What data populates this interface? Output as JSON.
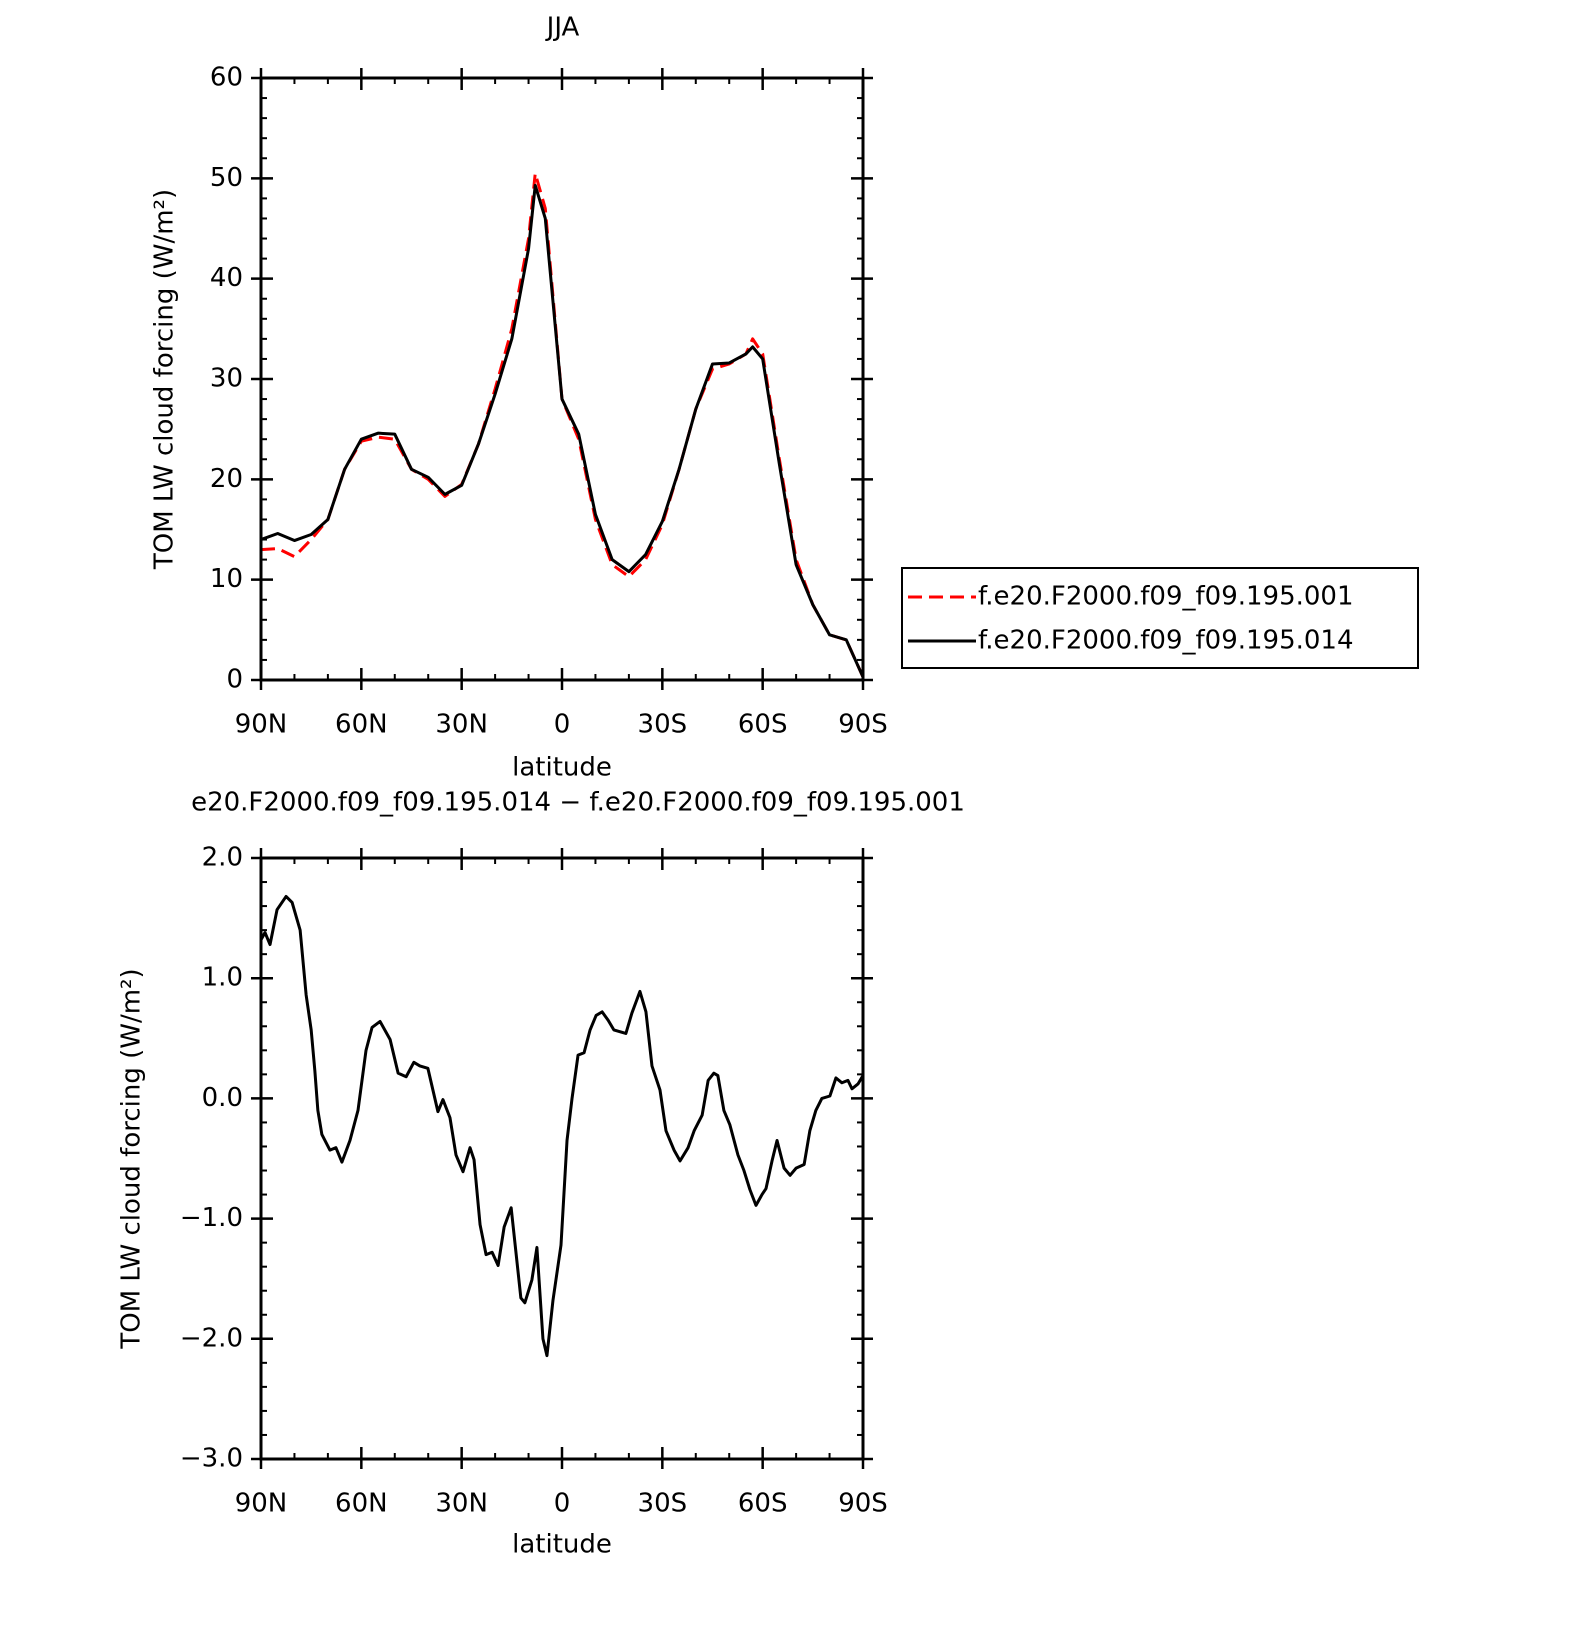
{
  "chart_data": [
    {
      "type": "line",
      "title": "JJA",
      "xlabel": "latitude",
      "ylabel": "TOM LW cloud forcing (W/m²)",
      "x": [
        90,
        85,
        80,
        75,
        70,
        65,
        60,
        55,
        50,
        45,
        40,
        35,
        30,
        25,
        20,
        15,
        10,
        8,
        5,
        0,
        -5,
        -10,
        -15,
        -20,
        -25,
        -30,
        -35,
        -40,
        -45,
        -50,
        -55,
        -57,
        -60,
        -65,
        -70,
        -75,
        -80,
        -85,
        -90
      ],
      "series": [
        {
          "name": "f.e20.F2000.f09_f09.195.001",
          "color": "#ff0000",
          "line_style": "dashed",
          "values": [
            13,
            13.1,
            12.3,
            14,
            16,
            21,
            23.8,
            24.2,
            24,
            21,
            20,
            18.3,
            19.5,
            23.5,
            29,
            35,
            44,
            50.5,
            47,
            28,
            24,
            16,
            11.5,
            10.3,
            12,
            15.5,
            21,
            27,
            31,
            31.5,
            32.5,
            34,
            32.5,
            22,
            12,
            7.5,
            4.5,
            4,
            0.3
          ]
        },
        {
          "name": "f.e20.F2000.f09_f09.195.014",
          "color": "#000000",
          "line_style": "solid",
          "values": [
            14,
            14.6,
            13.9,
            14.5,
            16,
            21,
            24,
            24.6,
            24.5,
            21,
            20.2,
            18.5,
            19.4,
            23.5,
            28.5,
            34,
            43,
            49.3,
            46,
            28,
            24.5,
            16.5,
            12,
            10.8,
            12.5,
            15.8,
            21,
            27,
            31.5,
            31.6,
            32.5,
            33.2,
            32,
            21.5,
            11.5,
            7.5,
            4.5,
            4,
            0.3
          ]
        }
      ],
      "xlim": [
        90,
        -90
      ],
      "xticks": [
        {
          "value": 90,
          "label": "90N"
        },
        {
          "value": 60,
          "label": "60N"
        },
        {
          "value": 30,
          "label": "30N"
        },
        0,
        {
          "value": -30,
          "label": "30S"
        },
        {
          "value": -60,
          "label": "60S"
        },
        {
          "value": -90,
          "label": "90S"
        }
      ],
      "ylim": [
        0,
        60
      ],
      "yticks": [
        0,
        10,
        20,
        30,
        40,
        50,
        60
      ],
      "legend": "right"
    },
    {
      "type": "line",
      "title": "e20.F2000.f09_f09.195.014 − f.e20.F2000.f09_f09.195.001",
      "xlabel": "latitude",
      "ylabel": "TOM LW cloud forcing (W/m²)",
      "x": [
        90,
        88.8,
        87.3,
        85.2,
        82.5,
        80.7,
        78.3,
        76.5,
        75,
        73.9,
        73,
        71.8,
        69.4,
        67.6,
        65.8,
        63.4,
        61,
        58.6,
        56.8,
        54.4,
        51.4,
        49,
        46.6,
        44.3,
        42.5,
        40.1,
        37.1,
        35.6,
        33.5,
        31.7,
        29.6,
        27.5,
        26.3,
        24.5,
        22.7,
        20.9,
        19.1,
        17.3,
        15.2,
        12.3,
        11.1,
        9,
        7.5,
        5.7,
        4.5,
        2.7,
        0.3,
        -1.5,
        -3,
        -4.8,
        -6.6,
        -8.4,
        -10.2,
        -12,
        -13.8,
        -15.5,
        -19.1,
        -20.9,
        -23.3,
        -25.1,
        -26.9,
        -29.3,
        -31.1,
        -33.5,
        -35.3,
        -37.7,
        -39.5,
        -41.9,
        -43.7,
        -45.4,
        -46.6,
        -48.4,
        -50.2,
        -52.6,
        -54.4,
        -56.2,
        -58,
        -59.8,
        -61,
        -62.8,
        -64.3,
        -66.4,
        -68.2,
        -70,
        -72.4,
        -74.1,
        -75.9,
        -77.7,
        -80.1,
        -81.9,
        -83.7,
        -85.5,
        -86.7,
        -88.5,
        -90
      ],
      "series": [
        {
          "color": "#000000",
          "line_style": "solid",
          "values": [
            1.32,
            1.38,
            1.28,
            1.57,
            1.68,
            1.63,
            1.4,
            0.86,
            0.57,
            0.23,
            -0.1,
            -0.3,
            -0.43,
            -0.41,
            -0.53,
            -0.35,
            -0.1,
            0.4,
            0.59,
            0.64,
            0.49,
            0.21,
            0.18,
            0.3,
            0.27,
            0.25,
            -0.11,
            -0.01,
            -0.16,
            -0.47,
            -0.61,
            -0.41,
            -0.51,
            -1.05,
            -1.3,
            -1.28,
            -1.39,
            -1.07,
            -0.91,
            -1.66,
            -1.7,
            -1.51,
            -1.24,
            -2,
            -2.14,
            -1.68,
            -1.22,
            -0.35,
            0,
            0.36,
            0.38,
            0.57,
            0.69,
            0.72,
            0.65,
            0.57,
            0.54,
            0.71,
            0.89,
            0.72,
            0.27,
            0.07,
            -0.27,
            -0.43,
            -0.52,
            -0.41,
            -0.27,
            -0.14,
            0.15,
            0.21,
            0.19,
            -0.1,
            -0.22,
            -0.47,
            -0.6,
            -0.76,
            -0.89,
            -0.8,
            -0.75,
            -0.52,
            -0.35,
            -0.58,
            -0.64,
            -0.58,
            -0.55,
            -0.27,
            -0.1,
            0,
            0.02,
            0.17,
            0.13,
            0.15,
            0.08,
            0.12,
            0.19
          ]
        }
      ],
      "xlim": [
        90,
        -90
      ],
      "xticks": [
        {
          "value": 90,
          "label": "90N"
        },
        {
          "value": 60,
          "label": "60N"
        },
        {
          "value": 30,
          "label": "30N"
        },
        0,
        {
          "value": -30,
          "label": "30S"
        },
        {
          "value": -60,
          "label": "60S"
        },
        {
          "value": -90,
          "label": "90S"
        }
      ],
      "ylim": [
        -3,
        2
      ],
      "yticks": [
        {
          "value": -3,
          "label": "−3.0"
        },
        {
          "value": -2,
          "label": "−2.0"
        },
        {
          "value": -1,
          "label": "−1.0"
        },
        {
          "value": 0,
          "label": "0.0"
        },
        {
          "value": 1,
          "label": "1.0"
        },
        {
          "value": 2,
          "label": "2.0"
        }
      ]
    }
  ]
}
